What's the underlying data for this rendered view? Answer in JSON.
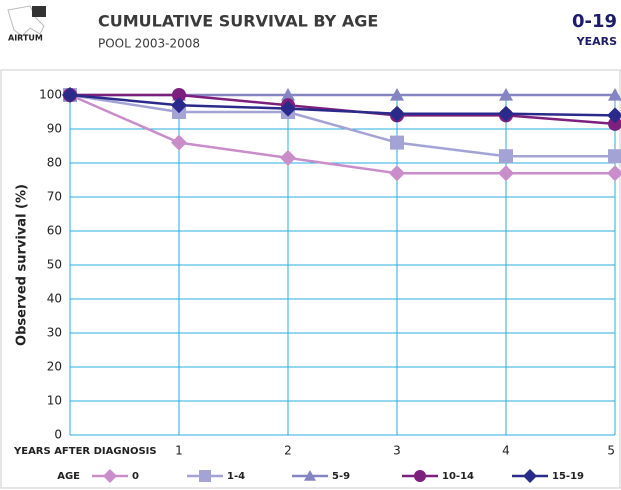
{
  "chart_data": {
    "type": "line",
    "logo": "AIRTUM",
    "title": "CUMULATIVE SURVIVAL BY AGE",
    "subtitle": "POOL 2003-2008",
    "badge": "0-19",
    "badge_unit": "YEARS",
    "y_label": "Observed survival (%)",
    "x_label": "YEARS AFTER DIAGNOSIS",
    "legend_title": "AGE",
    "x": [
      0,
      1,
      2,
      3,
      4,
      5
    ],
    "xlim": [
      0,
      5
    ],
    "xticks": [
      1,
      2,
      3,
      4,
      5
    ],
    "ylim": [
      0,
      100
    ],
    "yticks": [
      0,
      10,
      20,
      30,
      40,
      50,
      60,
      70,
      80,
      90,
      100
    ],
    "grid": true,
    "series": [
      {
        "name": "0",
        "color": "#c98ec9",
        "marker": "diamond",
        "values": [
          100,
          86,
          81.5,
          77,
          77,
          77
        ]
      },
      {
        "name": "1-4",
        "color": "#a3a3d6",
        "marker": "square",
        "values": [
          100,
          95,
          95,
          86,
          82,
          82
        ]
      },
      {
        "name": "5-9",
        "color": "#8585c4",
        "marker": "triangle",
        "values": [
          100,
          100,
          100,
          100,
          100,
          100
        ]
      },
      {
        "name": "10-14",
        "color": "#7d1f7d",
        "marker": "circle",
        "values": [
          100,
          100,
          97,
          94,
          94,
          91.5
        ]
      },
      {
        "name": "15-19",
        "color": "#2a2a8a",
        "marker": "diamond",
        "values": [
          100,
          97,
          96,
          94.5,
          94.5,
          94
        ]
      }
    ]
  }
}
